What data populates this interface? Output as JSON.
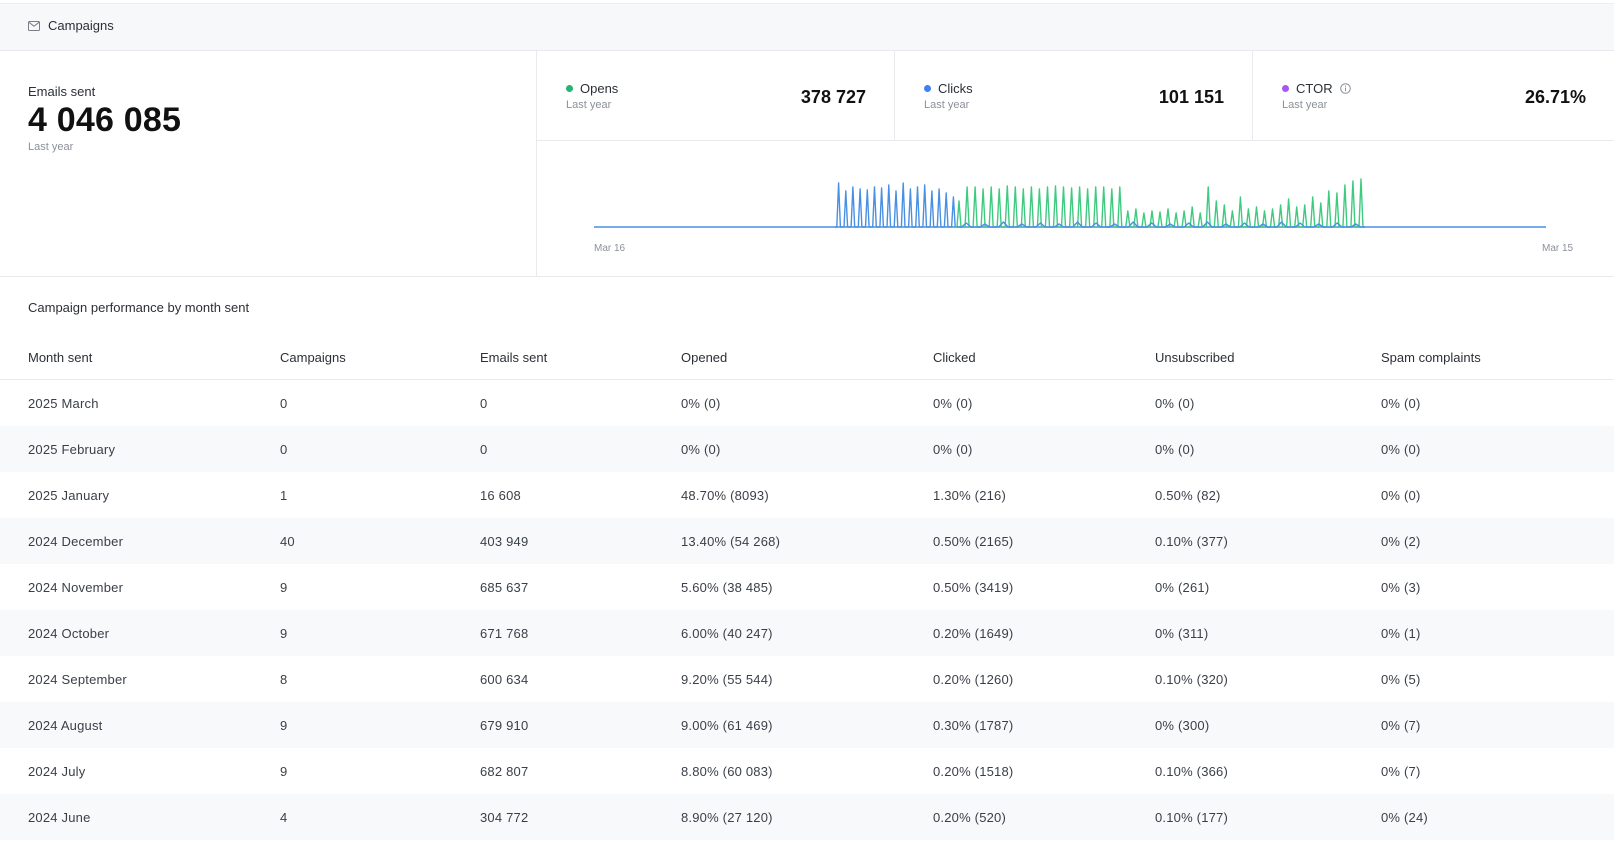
{
  "header": {
    "title": "Campaigns",
    "icon": "envelope-icon"
  },
  "emails_sent": {
    "label": "Emails sent",
    "value": "4 046 085",
    "period": "Last year"
  },
  "metrics": [
    {
      "label": "Opens",
      "period": "Last year",
      "value": "378 727",
      "color": "#22b573"
    },
    {
      "label": "Clicks",
      "period": "Last year",
      "value": "101 151",
      "color": "#3b82f6"
    },
    {
      "label": "CTOR",
      "period": "Last year",
      "value": "26.71%",
      "color": "#a855f7",
      "icon": "info-icon"
    }
  ],
  "chart": {
    "x_start": "Mar 16",
    "x_end": "Mar 15"
  },
  "chart_data": {
    "type": "line",
    "x": [
      "Mar 16",
      "Mar 15"
    ],
    "series": [
      {
        "color": "#3ecb7f"
      },
      {
        "color": "#4a90e2"
      }
    ]
  },
  "table": {
    "title": "Campaign performance by month sent",
    "columns": [
      "Month sent",
      "Campaigns",
      "Emails sent",
      "Opened",
      "Clicked",
      "Unsubscribed",
      "Spam complaints"
    ],
    "rows": [
      [
        "2025 March",
        "0",
        "0",
        "0% (0)",
        "0% (0)",
        "0% (0)",
        "0% (0)"
      ],
      [
        "2025 February",
        "0",
        "0",
        "0% (0)",
        "0% (0)",
        "0% (0)",
        "0% (0)"
      ],
      [
        "2025 January",
        "1",
        "16 608",
        "48.70% (8093)",
        "1.30% (216)",
        "0.50% (82)",
        "0% (0)"
      ],
      [
        "2024 December",
        "40",
        "403 949",
        "13.40% (54 268)",
        "0.50% (2165)",
        "0.10% (377)",
        "0% (2)"
      ],
      [
        "2024 November",
        "9",
        "685 637",
        "5.60% (38 485)",
        "0.50% (3419)",
        "0% (261)",
        "0% (3)"
      ],
      [
        "2024 October",
        "9",
        "671 768",
        "6.00% (40 247)",
        "0.20% (1649)",
        "0% (311)",
        "0% (1)"
      ],
      [
        "2024 September",
        "8",
        "600 634",
        "9.20% (55 544)",
        "0.20% (1260)",
        "0.10% (320)",
        "0% (5)"
      ],
      [
        "2024 August",
        "9",
        "679 910",
        "9.00% (61 469)",
        "0.30% (1787)",
        "0% (300)",
        "0% (7)"
      ],
      [
        "2024 July",
        "9",
        "682 807",
        "8.80% (60 083)",
        "0.20% (1518)",
        "0.10% (366)",
        "0% (7)"
      ],
      [
        "2024 June",
        "4",
        "304 772",
        "8.90% (27 120)",
        "0.20% (520)",
        "0.10% (177)",
        "0% (24)"
      ]
    ]
  }
}
